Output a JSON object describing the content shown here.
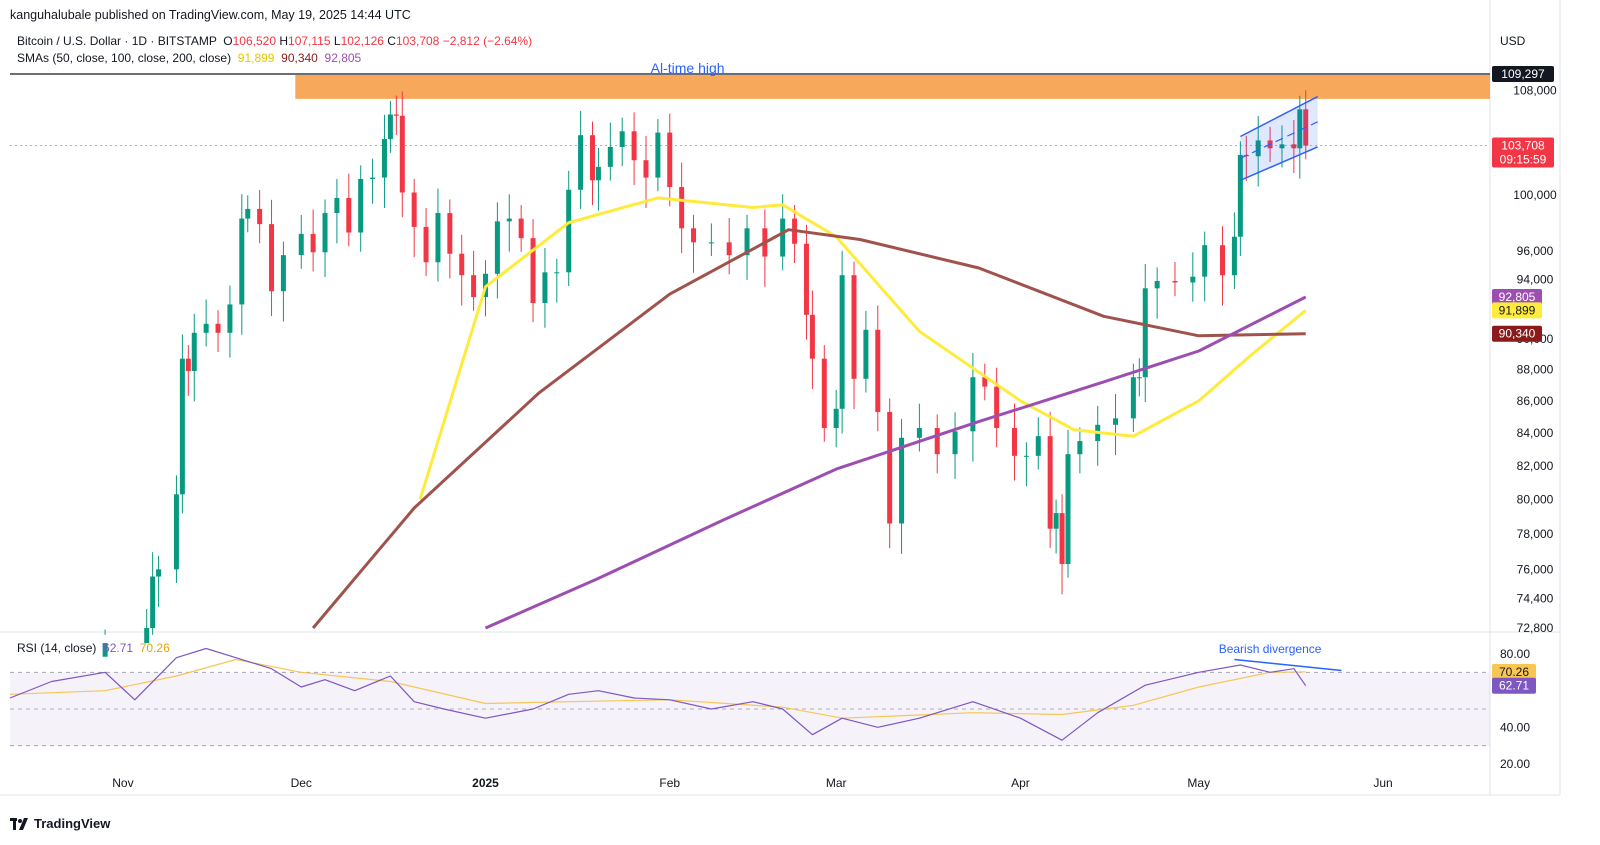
{
  "header": {
    "published": "kanguhalubale published on TradingView.com, May 19, 2025 14:44 UTC",
    "symbol": "Bitcoin / U.S. Dollar · 1D · BITSTAMP",
    "ohlc": {
      "o_label": "O",
      "o": "106,520",
      "h_label": "H",
      "h": "107,115",
      "l_label": "L",
      "l": "102,126",
      "c_label": "C",
      "c": "103,708",
      "change": "−2,812 (−2.64%)"
    },
    "sma_label": "SMAs (50, close, 100, close, 200, close)",
    "sma_values": {
      "sma50": "91,899",
      "sma100": "90,340",
      "sma200": "92,805"
    },
    "currency": "USD"
  },
  "colors": {
    "up": "#089981",
    "down": "#f23645",
    "sma50": "#ffeb3b",
    "sma100": "#a0524c",
    "sma200": "#9c4fb0",
    "rsi": "#7e57c2",
    "rsi_ma": "#f7c653",
    "zone": "#f7a85a",
    "channel": "#2962ff",
    "ath_line": "#131722"
  },
  "chart_data": [
    {
      "type": "candlestick",
      "title": "",
      "ylim": [
        72800,
        109297
      ],
      "y_ticks": [
        72800,
        74400,
        76000,
        78000,
        80000,
        82000,
        84000,
        86000,
        88000,
        90000,
        94000,
        96000,
        100000,
        108000
      ],
      "y_tick_labels": [
        "72,800",
        "74,400",
        "76,000",
        "78,000",
        "80,000",
        "82,000",
        "84,000",
        "86,000",
        "88,000",
        "90,000",
        "94,000",
        "96,000",
        "100,000",
        "108,000"
      ],
      "x_labels": [
        "Nov",
        "Dec",
        "2025",
        "Feb",
        "Mar",
        "Apr",
        "May",
        "Jun"
      ],
      "x_label_dates": [
        "2024-11-01",
        "2024-12-01",
        "2025-01-01",
        "2025-02-01",
        "2025-03-01",
        "2025-04-01",
        "2025-05-01",
        "2025-06-01"
      ],
      "x_range": [
        "2024-10-13",
        "2025-06-19"
      ],
      "closes": {
        "dates": [
          "2024-10-29",
          "2024-11-05",
          "2024-11-06",
          "2024-11-07",
          "2024-11-10",
          "2024-11-11",
          "2024-11-12",
          "2024-11-13",
          "2024-11-15",
          "2024-11-17",
          "2024-11-19",
          "2024-11-21",
          "2024-11-22",
          "2024-11-24",
          "2024-11-26",
          "2024-11-28",
          "2024-12-01",
          "2024-12-03",
          "2024-12-05",
          "2024-12-07",
          "2024-12-09",
          "2024-12-11",
          "2024-12-13",
          "2024-12-15",
          "2024-12-16",
          "2024-12-17",
          "2024-12-18",
          "2024-12-20",
          "2024-12-22",
          "2024-12-24",
          "2024-12-26",
          "2024-12-28",
          "2024-12-30",
          "2025-01-01",
          "2025-01-03",
          "2025-01-05",
          "2025-01-07",
          "2025-01-09",
          "2025-01-11",
          "2025-01-13",
          "2025-01-15",
          "2025-01-17",
          "2025-01-19",
          "2025-01-20",
          "2025-01-22",
          "2025-01-24",
          "2025-01-26",
          "2025-01-28",
          "2025-01-30",
          "2025-02-01",
          "2025-02-03",
          "2025-02-05",
          "2025-02-08",
          "2025-02-11",
          "2025-02-14",
          "2025-02-17",
          "2025-02-20",
          "2025-02-22",
          "2025-02-24",
          "2025-02-25",
          "2025-02-27",
          "2025-03-01",
          "2025-03-02",
          "2025-03-04",
          "2025-03-06",
          "2025-03-08",
          "2025-03-10",
          "2025-03-12",
          "2025-03-15",
          "2025-03-18",
          "2025-03-21",
          "2025-03-24",
          "2025-03-26",
          "2025-03-28",
          "2025-03-31",
          "2025-04-02",
          "2025-04-04",
          "2025-04-06",
          "2025-04-07",
          "2025-04-08",
          "2025-04-09",
          "2025-04-11",
          "2025-04-14",
          "2025-04-17",
          "2025-04-20",
          "2025-04-21",
          "2025-04-22",
          "2025-04-24",
          "2025-04-27",
          "2025-04-30",
          "2025-05-02",
          "2025-05-05",
          "2025-05-07",
          "2025-05-08",
          "2025-05-09",
          "2025-05-11",
          "2025-05-13",
          "2025-05-15",
          "2025-05-17",
          "2025-05-18",
          "2025-05-19"
        ],
        "values": [
          72000,
          72800,
          75600,
          76000,
          80300,
          88700,
          87900,
          90400,
          91000,
          90400,
          92300,
          98300,
          99000,
          97900,
          93200,
          95700,
          97200,
          95900,
          98700,
          99800,
          97300,
          101200,
          101300,
          104200,
          106100,
          106000,
          100200,
          97700,
          95200,
          98700,
          95800,
          94300,
          92800,
          94400,
          98100,
          98300,
          96900,
          92400,
          94500,
          94500,
          100400,
          104500,
          101100,
          102100,
          103600,
          104800,
          102600,
          101300,
          104700,
          100600,
          97600,
          96600,
          96600,
          95700,
          97600,
          95600,
          98300,
          96500,
          91600,
          88700,
          84300,
          85500,
          94300,
          87400,
          90600,
          85300,
          78600,
          83700,
          84300,
          82700,
          84100,
          87500,
          86900,
          84300,
          82600,
          82600,
          83800,
          78300,
          79200,
          76300,
          82700,
          83500,
          84500,
          84900,
          87500,
          87500,
          93400,
          93900,
          93800,
          94200,
          96400,
          94300,
          97000,
          103000,
          102900,
          104100,
          103500,
          103800,
          103500,
          106500,
          103708
        ]
      },
      "sma50": {
        "dates": [
          "2024-12-21",
          "2025-01-01",
          "2025-01-15",
          "2025-01-30",
          "2025-02-15",
          "2025-02-20",
          "2025-03-01",
          "2025-03-15",
          "2025-04-01",
          "2025-04-10",
          "2025-04-20",
          "2025-05-01",
          "2025-05-10",
          "2025-05-19"
        ],
        "values": [
          80000,
          93500,
          98000,
          99800,
          99100,
          99300,
          97000,
          90500,
          86000,
          84200,
          83800,
          86000,
          89000,
          91899
        ]
      },
      "sma100": {
        "dates": [
          "2024-12-03",
          "2024-12-20",
          "2025-01-10",
          "2025-02-01",
          "2025-02-21",
          "2025-03-05",
          "2025-03-25",
          "2025-04-15",
          "2025-05-01",
          "2025-05-19"
        ],
        "values": [
          72800,
          79500,
          86500,
          93000,
          97500,
          96800,
          94800,
          91500,
          90200,
          90340
        ]
      },
      "sma200": {
        "dates": [
          "2025-01-01",
          "2025-01-20",
          "2025-02-10",
          "2025-03-01",
          "2025-03-25",
          "2025-04-15",
          "2025-05-01",
          "2025-05-19"
        ],
        "values": [
          72800,
          75500,
          78800,
          81800,
          84700,
          87200,
          89200,
          92805
        ]
      },
      "zone": {
        "label": "",
        "y_range": [
          107400,
          109297
        ],
        "x_start": "2024-11-30"
      },
      "ath": {
        "label": "Al-time high",
        "value": "109,297",
        "y": 109297
      },
      "channel": {
        "x_range": [
          "2025-05-08",
          "2025-05-21"
        ],
        "lower": [
          101100,
          103600
        ],
        "upper": [
          104400,
          107500
        ]
      },
      "last_price": {
        "value": "103,708",
        "countdown": "09:15:59"
      },
      "tags": [
        {
          "label": "92,805",
          "color": "#9c4fb0",
          "y": 92805
        },
        {
          "label": "91,899",
          "color": "#ffeb3b",
          "y": 91899
        },
        {
          "label": "90,340",
          "color": "#8b1a1a",
          "y": 90340
        }
      ]
    },
    {
      "type": "line",
      "title": "",
      "label": "RSI (14, close)",
      "rsi_value": "62.71",
      "ma_value": "70.26",
      "ylim": [
        15,
        88
      ],
      "y_ticks": [
        20,
        40,
        80
      ],
      "y_tick_labels": [
        "20.00",
        "40.00",
        "80.00"
      ],
      "levels": [
        70,
        50,
        30
      ],
      "annotation": "Bearish divergence",
      "rsi": {
        "dates": [
          "2024-10-13",
          "2024-10-20",
          "2024-10-29",
          "2024-11-03",
          "2024-11-10",
          "2024-11-15",
          "2024-11-20",
          "2024-11-26",
          "2024-12-01",
          "2024-12-05",
          "2024-12-10",
          "2024-12-16",
          "2024-12-20",
          "2024-12-25",
          "2025-01-01",
          "2025-01-09",
          "2025-01-15",
          "2025-01-20",
          "2025-01-26",
          "2025-02-01",
          "2025-02-08",
          "2025-02-15",
          "2025-02-20",
          "2025-02-25",
          "2025-03-02",
          "2025-03-08",
          "2025-03-15",
          "2025-03-24",
          "2025-04-01",
          "2025-04-08",
          "2025-04-14",
          "2025-04-22",
          "2025-05-01",
          "2025-05-08",
          "2025-05-13",
          "2025-05-17",
          "2025-05-19"
        ],
        "values": [
          56,
          65,
          70,
          55,
          78,
          83,
          78,
          72,
          62,
          66,
          60,
          68,
          54,
          50,
          45,
          50,
          58,
          60,
          56,
          55,
          50,
          54,
          50,
          36,
          45,
          40,
          45,
          54,
          45,
          33,
          48,
          63,
          70,
          74,
          70,
          72,
          62.7
        ]
      },
      "rsi_ma": {
        "dates": [
          "2024-10-13",
          "2024-10-29",
          "2024-11-10",
          "2024-11-20",
          "2024-12-01",
          "2024-12-16",
          "2025-01-01",
          "2025-01-15",
          "2025-02-01",
          "2025-02-20",
          "2025-03-02",
          "2025-03-24",
          "2025-04-08",
          "2025-04-20",
          "2025-05-01",
          "2025-05-13",
          "2025-05-19"
        ],
        "values": [
          58,
          60,
          68,
          77,
          70,
          65,
          53,
          54,
          55,
          51,
          45,
          48,
          47,
          52,
          62,
          70,
          70.3
        ]
      }
    }
  ],
  "footer": {
    "brand": "TradingView"
  }
}
